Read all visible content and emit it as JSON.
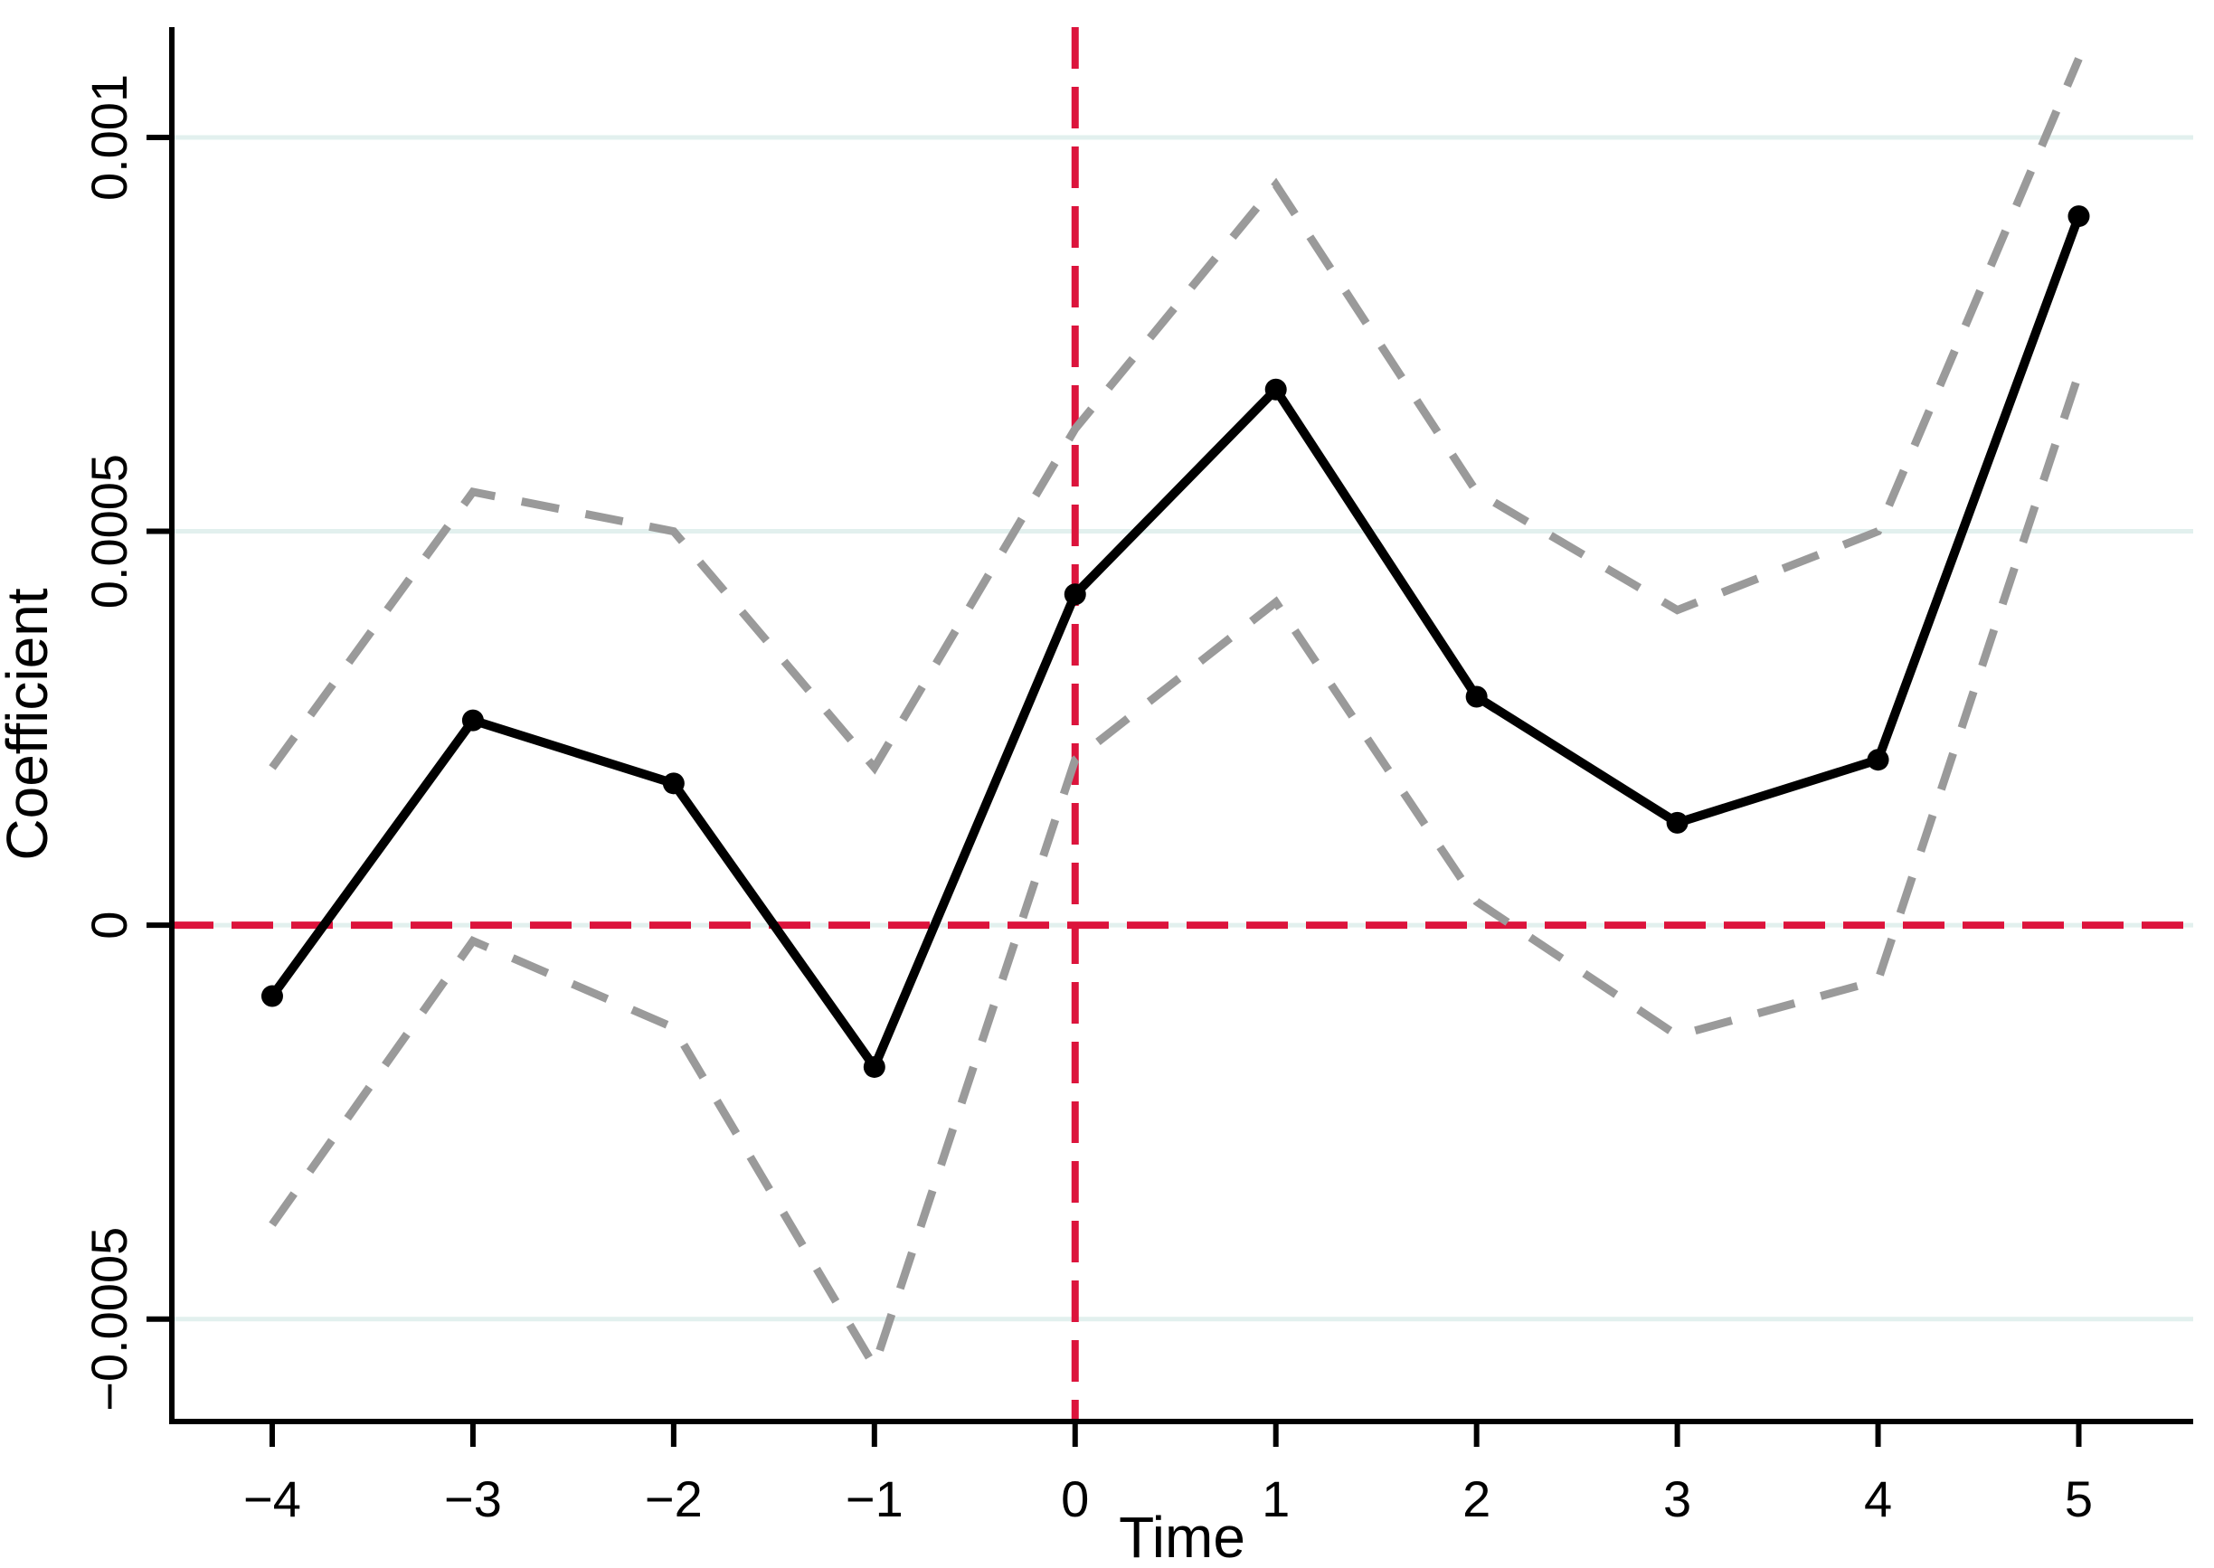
{
  "chart_data": {
    "type": "line",
    "title": "",
    "xlabel": "Time",
    "ylabel": "Coefficient",
    "x": [
      -4,
      -3,
      -2,
      -1,
      0,
      1,
      2,
      3,
      4,
      5
    ],
    "series": [
      {
        "name": "coefficient",
        "values": [
          -9e-05,
          0.00026,
          0.00018,
          -0.00018,
          0.00042,
          0.00068,
          0.00029,
          0.00013,
          0.00021,
          0.0009
        ]
      },
      {
        "name": "ci_upper",
        "values": [
          0.0002,
          0.00055,
          0.0005,
          0.0002,
          0.00063,
          0.00094,
          0.00055,
          0.0004,
          0.0005,
          0.0011
        ]
      },
      {
        "name": "ci_lower",
        "values": [
          -0.00038,
          -2e-05,
          -0.00013,
          -0.00056,
          0.00021,
          0.00041,
          3e-05,
          -0.00014,
          -7e-05,
          0.0007
        ]
      }
    ],
    "reference_lines": {
      "horizontal_y": 0,
      "vertical_x": 0
    },
    "x_ticks": [
      -4,
      -3,
      -2,
      -1,
      0,
      1,
      2,
      3,
      4,
      5
    ],
    "x_tick_labels": [
      "−4",
      "−3",
      "−2",
      "−1",
      "0",
      "1",
      "2",
      "3",
      "4",
      "5"
    ],
    "y_ticks": [
      -0.0005,
      0,
      0.0005,
      0.001
    ],
    "y_tick_labels": [
      "−0.0005",
      "0",
      "0.0005",
      "0.001"
    ],
    "xlim": [
      -4.5,
      5.57
    ],
    "ylim": [
      -0.00063,
      0.00114
    ],
    "grid": true,
    "legend_position": "none",
    "colors": {
      "series": "#000000",
      "ci": "#9a9a9a",
      "reference": "#dc143c",
      "gridline": "#e2f0ee",
      "axis": "#000000"
    }
  }
}
